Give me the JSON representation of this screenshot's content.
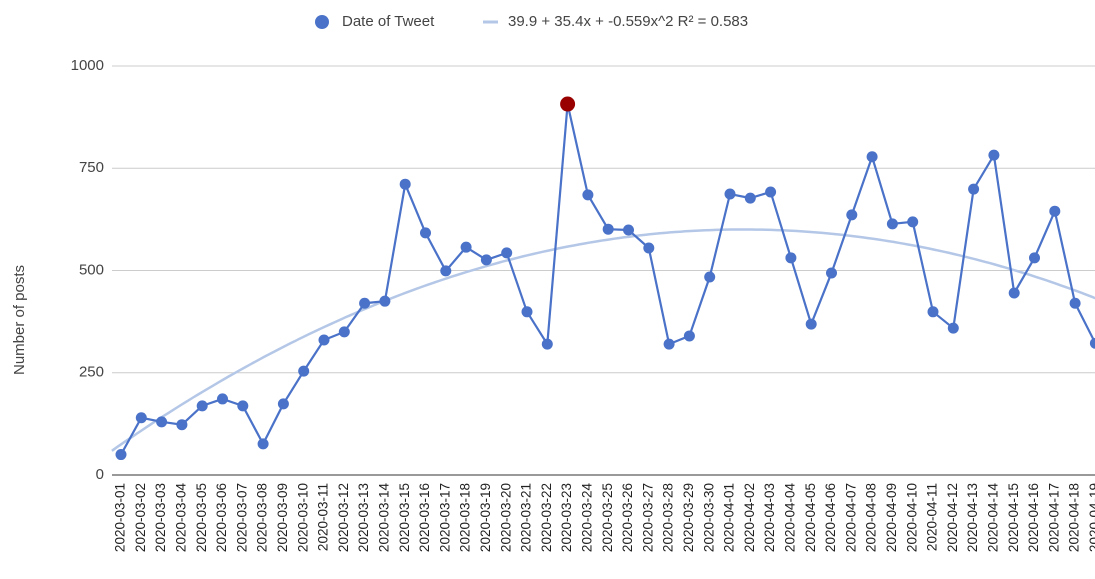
{
  "chart_data": {
    "type": "line",
    "y_label": "Number of posts",
    "categories": [
      "2020-03-01",
      "2020-03-02",
      "2020-03-03",
      "2020-03-04",
      "2020-03-05",
      "2020-03-06",
      "2020-03-07",
      "2020-03-08",
      "2020-03-09",
      "2020-03-10",
      "2020-03-11",
      "2020-03-12",
      "2020-03-13",
      "2020-03-14",
      "2020-03-15",
      "2020-03-16",
      "2020-03-17",
      "2020-03-18",
      "2020-03-19",
      "2020-03-20",
      "2020-03-21",
      "2020-03-22",
      "2020-03-23",
      "2020-03-24",
      "2020-03-25",
      "2020-03-26",
      "2020-03-27",
      "2020-03-28",
      "2020-03-29",
      "2020-03-30",
      "2020-04-01",
      "2020-04-02",
      "2020-04-03",
      "2020-04-04",
      "2020-04-05",
      "2020-04-06",
      "2020-04-07",
      "2020-04-08",
      "2020-04-09",
      "2020-04-10",
      "2020-04-11",
      "2020-04-12",
      "2020-04-13",
      "2020-04-14",
      "2020-04-15",
      "2020-04-16",
      "2020-04-17",
      "2020-04-18",
      "2020-04-19"
    ],
    "series": [
      {
        "name": "Date of Tweet",
        "color": "#4a72c8",
        "values": [
          50,
          140,
          130,
          123,
          169,
          186,
          169,
          76,
          174,
          254,
          330,
          350,
          420,
          425,
          711,
          592,
          499,
          557,
          526,
          543,
          399,
          320,
          907,
          685,
          601,
          599,
          555,
          320,
          340,
          484,
          687,
          677,
          692,
          531,
          369,
          494,
          636,
          778,
          614,
          619,
          399,
          359,
          699,
          782,
          445,
          531,
          645,
          420,
          322
        ],
        "highlight_index": 22,
        "highlight_color": "#990000"
      }
    ],
    "trendline": {
      "name": "39.9 + 35.4x + -0.559x^2 R² = 0.583",
      "color": "#b4c7e7",
      "coefficients": [
        39.9,
        35.4,
        -0.559
      ]
    },
    "ylim": [
      0,
      1000
    ],
    "yticks": [
      0,
      250,
      500,
      750,
      1000
    ],
    "grid": true,
    "legend": "top"
  }
}
